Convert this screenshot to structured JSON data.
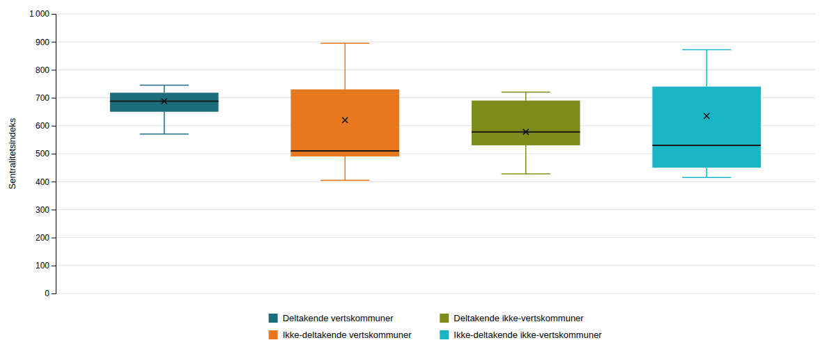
{
  "chart_data": {
    "type": "box",
    "ylabel": "Sentralitetsindeks",
    "ylim": [
      0,
      1000
    ],
    "yticks": [
      0,
      100,
      200,
      300,
      400,
      500,
      600,
      700,
      800,
      900,
      {
        "value": 1000,
        "label": "1 000"
      }
    ],
    "grid": true,
    "tick_labels": "y",
    "legend": "bottom",
    "series": [
      {
        "name": "Deltakende vertskommuner",
        "color": "#1b6d7c",
        "q1": 650,
        "median": 688,
        "q3": 718,
        "whisker_low": 570,
        "whisker_high": 745,
        "mean": 688
      },
      {
        "name": "Ikke-deltakende vertskommuner",
        "color": "#e8781e",
        "q1": 490,
        "median": 510,
        "q3": 730,
        "whisker_low": 405,
        "whisker_high": 895,
        "mean": 620
      },
      {
        "name": "Deltakende ikke-vertskommuner",
        "color": "#7d8c1a",
        "q1": 530,
        "median": 578,
        "q3": 690,
        "whisker_low": 428,
        "whisker_high": 720,
        "mean": 578
      },
      {
        "name": "Ikke-deltakende ikke-vertskommuner",
        "color": "#1ab5c5",
        "q1": 450,
        "median": 530,
        "q3": 740,
        "whisker_low": 415,
        "whisker_high": 872,
        "mean": 635
      }
    ]
  }
}
